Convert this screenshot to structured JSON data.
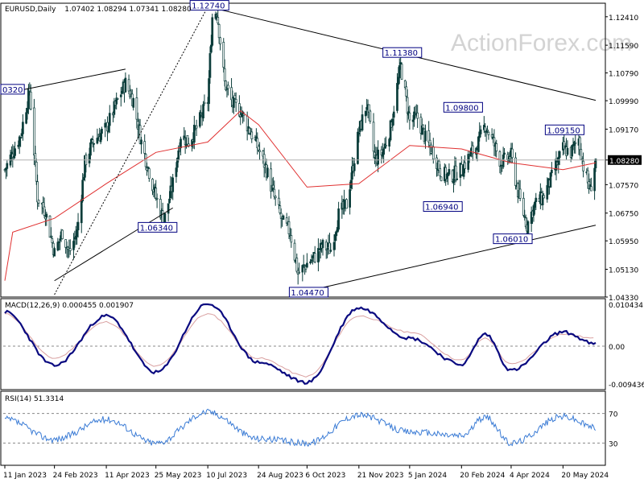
{
  "header": {
    "symbol": "EURUSD,Daily",
    "ohlc": "1.07402 1.08294 1.07341 1.08280"
  },
  "watermark": "ActionForex.com",
  "chart_data": [
    {
      "type": "candlestick",
      "title": "EURUSD,Daily 1.07402 1.08294 1.07341 1.08280",
      "y_ticks": [
        "1.12410",
        "1.11590",
        "1.10790",
        "1.09990",
        "1.09170",
        "1.08280",
        "1.07570",
        "1.06750",
        "1.05950",
        "1.05130",
        "1.04330"
      ],
      "ylim": [
        1.0433,
        1.128
      ],
      "x_ticks": [
        "11 Jan 2023",
        "24 Feb 2023",
        "11 Apr 2023",
        "25 May 2023",
        "10 Jul 2023",
        "24 Aug 2023",
        "6 Oct 2023",
        "21 Nov 2023",
        "5 Jan 2024",
        "20 Feb 2024",
        "4 Apr 2024",
        "20 May 2024"
      ],
      "current_price": "1.08280",
      "close_path": [
        [
          "11 Jan 2023",
          1.08
        ],
        [
          "18 Jan 2023",
          1.085
        ],
        [
          "25 Jan 2023",
          1.09
        ],
        [
          "2 Feb 2023",
          1.103
        ],
        [
          "9 Feb 2023",
          1.072
        ],
        [
          "16 Feb 2023",
          1.068
        ],
        [
          "24 Feb 2023",
          1.056
        ],
        [
          "3 Mar 2023",
          1.062
        ],
        [
          "9 Mar 2023",
          1.056
        ],
        [
          "16 Mar 2023",
          1.062
        ],
        [
          "23 Mar 2023",
          1.082
        ],
        [
          "30 Mar 2023",
          1.088
        ],
        [
          "11 Apr 2023",
          1.092
        ],
        [
          "21 Apr 2023",
          1.1
        ],
        [
          "28 Apr 2023",
          1.105
        ],
        [
          "5 May 2023",
          1.1
        ],
        [
          "12 May 2023",
          1.088
        ],
        [
          "25 May 2023",
          1.072
        ],
        [
          "1 Jun 2023",
          1.065
        ],
        [
          "9 Jun 2023",
          1.076
        ],
        [
          "16 Jun 2023",
          1.09
        ],
        [
          "23 Jun 2023",
          1.088
        ],
        [
          "30 Jun 2023",
          1.092
        ],
        [
          "10 Jul 2023",
          1.1
        ],
        [
          "14 Jul 2023",
          1.124
        ],
        [
          "18 Jul 2023",
          1.126
        ],
        [
          "25 Jul 2023",
          1.105
        ],
        [
          "1 Aug 2023",
          1.099
        ],
        [
          "8 Aug 2023",
          1.097
        ],
        [
          "24 Aug 2023",
          1.086
        ],
        [
          "31 Aug 2023",
          1.08
        ],
        [
          "7 Sep 2023",
          1.072
        ],
        [
          "14 Sep 2023",
          1.065
        ],
        [
          "21 Sep 2023",
          1.062
        ],
        [
          "28 Sep 2023",
          1.05
        ],
        [
          "6 Oct 2023",
          1.053
        ],
        [
          "13 Oct 2023",
          1.055
        ],
        [
          "20 Oct 2023",
          1.058
        ],
        [
          "27 Oct 2023",
          1.057
        ],
        [
          "3 Nov 2023",
          1.067
        ],
        [
          "10 Nov 2023",
          1.07
        ],
        [
          "21 Nov 2023",
          1.091
        ],
        [
          "28 Nov 2023",
          1.099
        ],
        [
          "5 Dec 2023",
          1.083
        ],
        [
          "12 Dec 2023",
          1.085
        ],
        [
          "19 Dec 2023",
          1.092
        ],
        [
          "28 Dec 2023",
          1.11
        ],
        [
          "5 Jan 2024",
          1.094
        ],
        [
          "12 Jan 2024",
          1.095
        ],
        [
          "19 Jan 2024",
          1.089
        ],
        [
          "26 Jan 2024",
          1.085
        ],
        [
          "2 Feb 2024",
          1.079
        ],
        [
          "9 Feb 2024",
          1.078
        ],
        [
          "20 Feb 2024",
          1.08
        ],
        [
          "27 Feb 2024",
          1.084
        ],
        [
          "5 Mar 2024",
          1.087
        ],
        [
          "12 Mar 2024",
          1.093
        ],
        [
          "19 Mar 2024",
          1.088
        ],
        [
          "26 Mar 2024",
          1.082
        ],
        [
          "4 Apr 2024",
          1.084
        ],
        [
          "11 Apr 2024",
          1.072
        ],
        [
          "18 Apr 2024",
          1.064
        ],
        [
          "25 Apr 2024",
          1.07
        ],
        [
          "2 May 2024",
          1.072
        ],
        [
          "9 May 2024",
          1.077
        ],
        [
          "20 May 2024",
          1.086
        ],
        [
          "27 May 2024",
          1.085
        ],
        [
          "3 Jun 2024",
          1.089
        ],
        [
          "7 Jun 2024",
          1.081
        ],
        [
          "13 Jun 2024",
          1.074
        ],
        [
          "18 Jun 2024",
          1.0828
        ]
      ],
      "moving_average": [
        [
          "11 Jan 2023",
          1.048
        ],
        [
          "18 Jan 2023",
          1.062
        ],
        [
          "24 Feb 2023",
          1.066
        ],
        [
          "11 Apr 2023",
          1.076
        ],
        [
          "25 May 2023",
          1.085
        ],
        [
          "10 Jul 2023",
          1.088
        ],
        [
          "8 Aug 2023",
          1.097
        ],
        [
          "24 Aug 2023",
          1.093
        ],
        [
          "6 Oct 2023",
          1.075
        ],
        [
          "21 Nov 2023",
          1.076
        ],
        [
          "5 Jan 2024",
          1.087
        ],
        [
          "20 Feb 2024",
          1.086
        ],
        [
          "4 Apr 2024",
          1.082
        ],
        [
          "20 May 2024",
          1.08
        ],
        [
          "18 Jun 2024",
          1.082
        ]
      ],
      "trendlines": [
        {
          "from": [
            "11 Jan 2023",
            1.102
          ],
          "to": [
            "28 Apr 2023",
            1.109
          ]
        },
        {
          "from": [
            "24 Feb 2023",
            1.048
          ],
          "to": [
            "9 Jun 2023",
            1.069
          ]
        },
        {
          "from": [
            "10 Jul 2023",
            1.127
          ],
          "to": [
            "18 Jun 2024",
            1.1
          ]
        },
        {
          "from": [
            "6 Oct 2023",
            1.045
          ],
          "to": [
            "18 Jun 2024",
            1.064
          ]
        },
        {
          "from": [
            "24 Feb 2023",
            1.044
          ],
          "to": [
            "10 Jul 2023",
            1.127
          ],
          "style": "dotted"
        }
      ],
      "annotations": [
        {
          "text": "1.12740",
          "x": "10 Jul 2023",
          "y": 1.1274
        },
        {
          "text": "1.11380",
          "x": "28 Dec 2023",
          "y": 1.1138
        },
        {
          "text": "1.09800",
          "x": "20 Feb 2024",
          "y": 1.098
        },
        {
          "text": "1.09150",
          "x": "20 May 2024",
          "y": 1.0915
        },
        {
          "text": "0320",
          "x": "11 Jan 2023",
          "y": 1.1032
        },
        {
          "text": "1.06340",
          "x": "25 May 2023",
          "y": 1.0634
        },
        {
          "text": "1.06940",
          "x": "2 Feb 2024",
          "y": 1.0694
        },
        {
          "text": "1.06010",
          "x": "4 Apr 2024",
          "y": 1.0601
        },
        {
          "text": "1.04470",
          "x": "6 Oct 2023",
          "y": 1.0447
        }
      ]
    },
    {
      "type": "line",
      "title": "MACD(12,26,9) 0.000455 0.001907",
      "y_ticks": [
        "0.010434",
        "0.00",
        "-0.009436"
      ],
      "ylim": [
        -0.0108,
        0.0118
      ],
      "series": [
        {
          "values": [
            [
              "11 Jan 2023",
              0.0085
            ],
            [
              "24 Feb 2023",
              -0.0048
            ],
            [
              "11 Apr 2023",
              0.0075
            ],
            [
              "25 May 2023",
              -0.0065
            ],
            [
              "10 Jul 2023",
              0.0105
            ],
            [
              "24 Aug 2023",
              -0.004
            ],
            [
              "6 Oct 2023",
              -0.009
            ],
            [
              "21 Nov 2023",
              0.0095
            ],
            [
              "5 Jan 2024",
              0.002
            ],
            [
              "20 Feb 2024",
              -0.0045
            ],
            [
              "12 Mar 2024",
              0.003
            ],
            [
              "4 Apr 2024",
              -0.006
            ],
            [
              "20 May 2024",
              0.0035
            ],
            [
              "18 Jun 2024",
              0.0005
            ]
          ]
        },
        {
          "values": [
            [
              "11 Jan 2023",
              0.008
            ],
            [
              "24 Feb 2023",
              -0.003
            ],
            [
              "11 Apr 2023",
              0.006
            ],
            [
              "25 May 2023",
              -0.005
            ],
            [
              "10 Jul 2023",
              0.008
            ],
            [
              "24 Aug 2023",
              -0.003
            ],
            [
              "6 Oct 2023",
              -0.0075
            ],
            [
              "21 Nov 2023",
              0.0075
            ],
            [
              "5 Jan 2024",
              0.0035
            ],
            [
              "20 Feb 2024",
              -0.0035
            ],
            [
              "12 Mar 2024",
              0.002
            ],
            [
              "4 Apr 2024",
              -0.0045
            ],
            [
              "20 May 2024",
              0.003
            ],
            [
              "18 Jun 2024",
              0.0019
            ]
          ]
        }
      ]
    },
    {
      "type": "line",
      "title": "RSI(14) 51.3314",
      "y_ticks": [
        "70",
        "30"
      ],
      "ylim": [
        0,
        100
      ],
      "series": [
        {
          "values": [
            [
              "11 Jan 2023",
              62
            ],
            [
              "24 Feb 2023",
              35
            ],
            [
              "11 Apr 2023",
              62
            ],
            [
              "25 May 2023",
              30
            ],
            [
              "10 Jul 2023",
              72
            ],
            [
              "24 Aug 2023",
              36
            ],
            [
              "6 Oct 2023",
              30
            ],
            [
              "21 Nov 2023",
              68
            ],
            [
              "5 Jan 2024",
              45
            ],
            [
              "20 Feb 2024",
              40
            ],
            [
              "12 Mar 2024",
              65
            ],
            [
              "4 Apr 2024",
              30
            ],
            [
              "20 May 2024",
              66
            ],
            [
              "18 Jun 2024",
              51.33
            ]
          ]
        }
      ]
    }
  ]
}
